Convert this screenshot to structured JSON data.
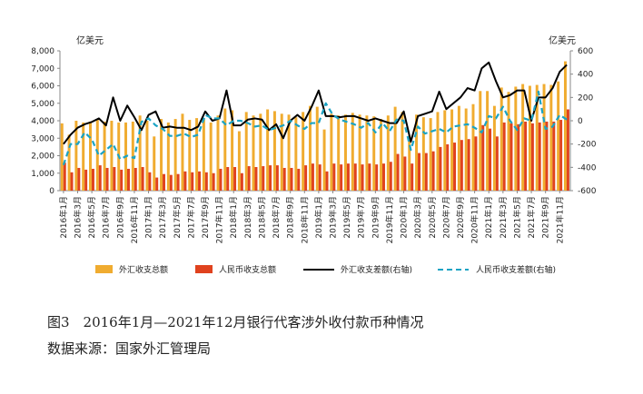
{
  "chart_data": {
    "type": "bar",
    "left_unit": "亿美元",
    "right_unit": "亿美元",
    "y_left_ticks": [
      "0",
      "1,000",
      "2,000",
      "3,000",
      "4,000",
      "5,000",
      "6,000",
      "7,000",
      "8,000"
    ],
    "y_right_ticks": [
      "-600",
      "-400",
      "-200",
      "0",
      "200",
      "400",
      "600"
    ],
    "ylim_left": [
      0,
      8000
    ],
    "ylim_right": [
      -600,
      600
    ],
    "categories": [
      "2016年1月",
      "2016年2月",
      "2016年3月",
      "2016年4月",
      "2016年5月",
      "2016年6月",
      "2016年7月",
      "2016年8月",
      "2016年9月",
      "2016年10月",
      "2016年11月",
      "2016年12月",
      "2017年1月",
      "2017年2月",
      "2017年3月",
      "2017年4月",
      "2017年5月",
      "2017年6月",
      "2017年7月",
      "2017年8月",
      "2017年9月",
      "2017年10月",
      "2017年11月",
      "2017年12月",
      "2018年1月",
      "2018年2月",
      "2018年3月",
      "2018年4月",
      "2018年5月",
      "2018年6月",
      "2018年7月",
      "2018年8月",
      "2018年9月",
      "2018年10月",
      "2018年11月",
      "2018年12月",
      "2019年1月",
      "2019年2月",
      "2019年3月",
      "2019年4月",
      "2019年5月",
      "2019年6月",
      "2019年7月",
      "2019年8月",
      "2019年9月",
      "2019年10月",
      "2019年11月",
      "2019年12月",
      "2020年1月",
      "2020年2月",
      "2020年3月",
      "2020年4月",
      "2020年5月",
      "2020年6月",
      "2020年7月",
      "2020年8月",
      "2020年9月",
      "2020年10月",
      "2020年11月",
      "2020年12月",
      "2021年1月",
      "2021年2月",
      "2021年3月",
      "2021年4月",
      "2021年5月",
      "2021年6月",
      "2021年7月",
      "2021年8月",
      "2021年9月",
      "2021年10月",
      "2021年11月",
      "2021年12月"
    ],
    "x_tick_labels": [
      "2016年1月",
      "2016年3月",
      "2016年5月",
      "2016年7月",
      "2016年9月",
      "2016年11月",
      "2017年1月",
      "2017年3月",
      "2017年5月",
      "2017年7月",
      "2017年9月",
      "2017年11月",
      "2018年1月",
      "2018年3月",
      "2018年5月",
      "2018年7月",
      "2018年9月",
      "2018年11月",
      "2019年1月",
      "2019年3月",
      "2019年5月",
      "2019年7月",
      "2019年9月",
      "2019年11月",
      "2020年1月",
      "2020年3月",
      "2020年5月",
      "2020年7月",
      "2020年9月",
      "2020年11月",
      "2021年1月",
      "2021年3月",
      "2021年5月",
      "2021年7月",
      "2021年9月",
      "2021年11月"
    ],
    "series": [
      {
        "name": "外汇收支总额",
        "axis": "left",
        "kind": "bar",
        "color": "#f0ac30",
        "values": [
          3850,
          3200,
          4000,
          3900,
          3950,
          4050,
          3950,
          4000,
          3900,
          3900,
          3950,
          4300,
          4000,
          3100,
          4100,
          3900,
          4100,
          4400,
          4050,
          4150,
          4100,
          3900,
          4300,
          4700,
          4600,
          3400,
          4500,
          4300,
          4400,
          4650,
          4550,
          4400,
          4350,
          4200,
          4500,
          4850,
          4800,
          3500,
          4400,
          4300,
          4350,
          4450,
          4350,
          4300,
          4250,
          4100,
          4300,
          4800,
          4500,
          3150,
          4350,
          4200,
          4150,
          4500,
          4600,
          4650,
          4850,
          4700,
          4950,
          5700,
          5700,
          4850,
          5900,
          5650,
          5950,
          6100,
          6000,
          6050,
          6100,
          6050,
          6250,
          7400
        ]
      },
      {
        "name": "人民币收支总额",
        "axis": "left",
        "kind": "bar",
        "color": "#e0421e",
        "values": [
          1600,
          1050,
          1300,
          1200,
          1250,
          1450,
          1300,
          1350,
          1200,
          1250,
          1300,
          1350,
          1050,
          750,
          950,
          900,
          950,
          1100,
          1050,
          1100,
          1050,
          1000,
          1250,
          1350,
          1350,
          1000,
          1400,
          1350,
          1400,
          1450,
          1450,
          1300,
          1300,
          1250,
          1450,
          1550,
          1500,
          1100,
          1550,
          1500,
          1550,
          1550,
          1500,
          1550,
          1500,
          1550,
          1650,
          2100,
          1950,
          1550,
          2150,
          2150,
          2250,
          2500,
          2650,
          2750,
          2900,
          2950,
          3100,
          3750,
          3550,
          3100,
          3900,
          3850,
          3800,
          3950,
          3850,
          3900,
          3950,
          3950,
          4050,
          4650
        ]
      },
      {
        "name": "外汇收支差额(右轴)",
        "axis": "right",
        "kind": "line",
        "color": "#000000",
        "values": [
          -200,
          -120,
          -60,
          -30,
          -10,
          20,
          -40,
          200,
          0,
          130,
          30,
          -80,
          50,
          80,
          -60,
          -50,
          -60,
          -60,
          -80,
          -50,
          80,
          0,
          20,
          260,
          -40,
          -40,
          10,
          20,
          10,
          -80,
          -30,
          -150,
          0,
          50,
          0,
          120,
          260,
          40,
          40,
          30,
          40,
          40,
          20,
          0,
          20,
          0,
          -20,
          -20,
          80,
          -180,
          40,
          60,
          80,
          250,
          100,
          150,
          200,
          280,
          260,
          450,
          500,
          340,
          200,
          220,
          260,
          260,
          0,
          200,
          200,
          280,
          420,
          480
        ]
      },
      {
        "name": "人民币收支差额(右轴)",
        "axis": "right",
        "kind": "line",
        "color": "#1aa3c4",
        "values": [
          -380,
          -200,
          -200,
          -100,
          -160,
          -300,
          -250,
          -200,
          -330,
          -300,
          -320,
          -10,
          20,
          -40,
          -70,
          -130,
          -130,
          -110,
          -140,
          -120,
          50,
          20,
          20,
          -40,
          0,
          0,
          -20,
          -50,
          -40,
          -80,
          -60,
          -40,
          0,
          -40,
          -70,
          -20,
          -20,
          150,
          50,
          10,
          -10,
          -30,
          -60,
          -20,
          -100,
          -20,
          -90,
          10,
          0,
          -250,
          -50,
          -110,
          -90,
          -70,
          -100,
          -50,
          -40,
          -30,
          -60,
          -100,
          40,
          20,
          120,
          0,
          -80,
          20,
          0,
          250,
          -70,
          -50,
          50,
          10
        ]
      }
    ],
    "caption": "图3　2016年1月—2021年12月银行代客涉外收付款币种情况",
    "source": "数据来源：国家外汇管理局"
  }
}
